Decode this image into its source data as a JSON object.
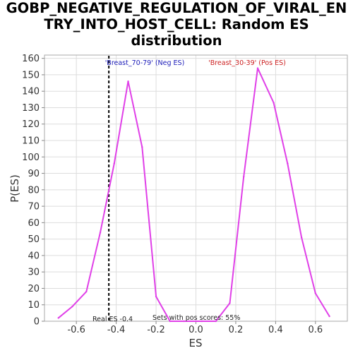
{
  "chart_data": {
    "type": "line",
    "title": "GOBP_NEGATIVE_REGULATION_OF_VIRAL_EN\nTRY_INTO_HOST_CELL: Random ES\ndistribution",
    "xlabel": "ES",
    "ylabel": "P(ES)",
    "xlim": [
      -0.76,
      0.76
    ],
    "ylim": [
      0,
      162
    ],
    "x_ticks": [
      "-0.6",
      "-0.4",
      "-0.2",
      "0.0",
      "0.2",
      "0.4",
      "0.6"
    ],
    "y_ticks": [
      "0",
      "10",
      "20",
      "30",
      "40",
      "50",
      "60",
      "70",
      "80",
      "90",
      "100",
      "110",
      "120",
      "130",
      "140",
      "150",
      "160"
    ],
    "series": [
      {
        "color": "#e040e8",
        "x": [
          -0.69,
          -0.62,
          -0.55,
          -0.48,
          -0.41,
          -0.34,
          -0.27,
          -0.2,
          -0.13,
          -0.06,
          0.0,
          0.03,
          0.1,
          0.17,
          0.24,
          0.31,
          0.39,
          0.46,
          0.53,
          0.6,
          0.67
        ],
        "y": [
          2,
          9,
          18,
          54,
          96,
          146,
          106,
          15,
          0,
          0,
          0,
          0,
          0,
          11,
          88,
          154,
          133,
          96,
          51,
          17,
          3
        ]
      }
    ],
    "real_es": {
      "x": -0.437,
      "label": "Real ES -0.4"
    },
    "annotations": {
      "neg": {
        "text": "'Breast_70-79' (Neg ES)",
        "color": "#1a1ab8"
      },
      "pos": {
        "text": "'Breast_30-39' (Pos ES)",
        "color": "#cc2020"
      },
      "pos_scores": "Sets with pos scores: 55%"
    },
    "grid": true,
    "legend": "none"
  }
}
